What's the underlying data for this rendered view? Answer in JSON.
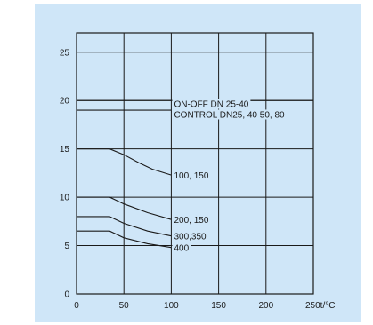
{
  "chart_data": {
    "type": "line",
    "title": "",
    "xlabel": "",
    "ylabel": "",
    "xlim": [
      0,
      250
    ],
    "ylim": [
      0,
      27
    ],
    "grid": true,
    "background_color": "#cfe6f8",
    "line_color": "#1a1a1a",
    "x_ticks": [
      {
        "value": 0,
        "label": "0"
      },
      {
        "value": 50,
        "label": "50"
      },
      {
        "value": 100,
        "label": "100"
      },
      {
        "value": 150,
        "label": "150"
      },
      {
        "value": 200,
        "label": "200"
      },
      {
        "value": 250,
        "label": "250t/°C"
      }
    ],
    "y_ticks": [
      {
        "value": 0,
        "label": "0"
      },
      {
        "value": 5,
        "label": "5"
      },
      {
        "value": 10,
        "label": "10"
      },
      {
        "value": 15,
        "label": "15"
      },
      {
        "value": 20,
        "label": "20"
      },
      {
        "value": 25,
        "label": "25"
      }
    ],
    "series": [
      {
        "x": [
          0,
          250
        ],
        "y": [
          20,
          20
        ]
      },
      {
        "x": [
          0,
          100
        ],
        "y": [
          19,
          19
        ]
      },
      {
        "x": [
          0,
          35,
          50,
          65,
          80,
          100
        ],
        "y": [
          15,
          15,
          14.4,
          13.6,
          12.9,
          12.3
        ]
      },
      {
        "x": [
          0,
          35,
          50,
          75,
          100
        ],
        "y": [
          10,
          10,
          9.3,
          8.4,
          7.7
        ]
      },
      {
        "x": [
          0,
          35,
          50,
          75,
          100
        ],
        "y": [
          8,
          8,
          7.3,
          6.5,
          6
        ]
      },
      {
        "x": [
          0,
          35,
          50,
          75,
          100
        ],
        "y": [
          6.5,
          6.5,
          5.8,
          5.2,
          4.8
        ]
      }
    ],
    "annotations": [
      {
        "text": "ON-OFF DN 25-40",
        "x": 101,
        "y": 19.7
      },
      {
        "text": "CONTROL DN25, 40 50, 80",
        "x": 101,
        "y": 18.6
      },
      {
        "text": "100, 150",
        "x": 101,
        "y": 12.3
      },
      {
        "text": "200, 150",
        "x": 101,
        "y": 7.7
      },
      {
        "text": "300,350",
        "x": 101,
        "y": 6.0
      },
      {
        "text": "400",
        "x": 101,
        "y": 4.8
      }
    ]
  }
}
